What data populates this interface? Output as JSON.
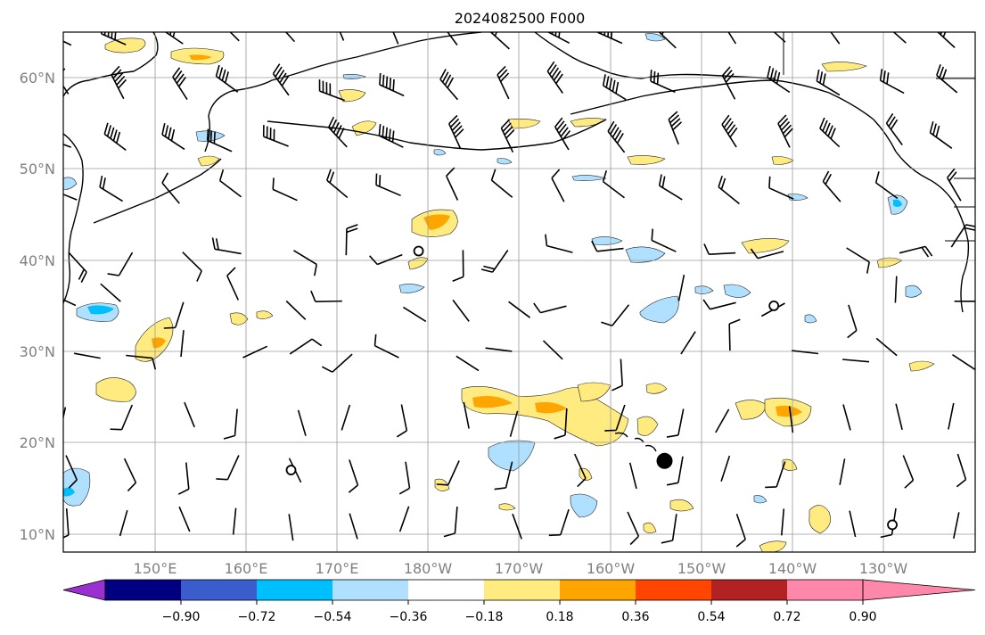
{
  "title": "2024082500 F000",
  "map": {
    "lon_range": [
      140,
      -118
    ],
    "lat_range": [
      8,
      65
    ],
    "lon_ticks": [
      "150°E",
      "160°E",
      "170°E",
      "180°W",
      "170°W",
      "160°W",
      "150°W",
      "140°W",
      "130°W"
    ],
    "lat_ticks": [
      "10°N",
      "20°N",
      "30°N",
      "40°N",
      "50°N",
      "60°N"
    ],
    "gridlines": true,
    "tick_color": "#808080"
  },
  "colorbar": {
    "orientation": "horizontal",
    "extend": "both",
    "tick_labels": [
      "−0.90",
      "−0.72",
      "−0.54",
      "−0.36",
      "−0.18",
      "0.18",
      "0.36",
      "0.54",
      "0.72",
      "0.90"
    ],
    "colors": [
      "#9b30d0",
      "#000080",
      "#3a5ccc",
      "#00bfff",
      "#b0e0ff",
      "#ffffff",
      "#ffeb80",
      "#ffa500",
      "#ff4500",
      "#b22222",
      "#ff88aa"
    ]
  },
  "markers": [
    {
      "type": "filled-circle",
      "lon": -154.0,
      "lat": 18.0
    },
    {
      "type": "open-circle",
      "lon": 179.0,
      "lat": 41.0
    },
    {
      "type": "open-circle",
      "lon": -142.0,
      "lat": 35.0
    },
    {
      "type": "open-circle",
      "lon": 165.0,
      "lat": 17.0
    },
    {
      "type": "open-circle",
      "lon": -129.0,
      "lat": 11.0
    }
  ]
}
